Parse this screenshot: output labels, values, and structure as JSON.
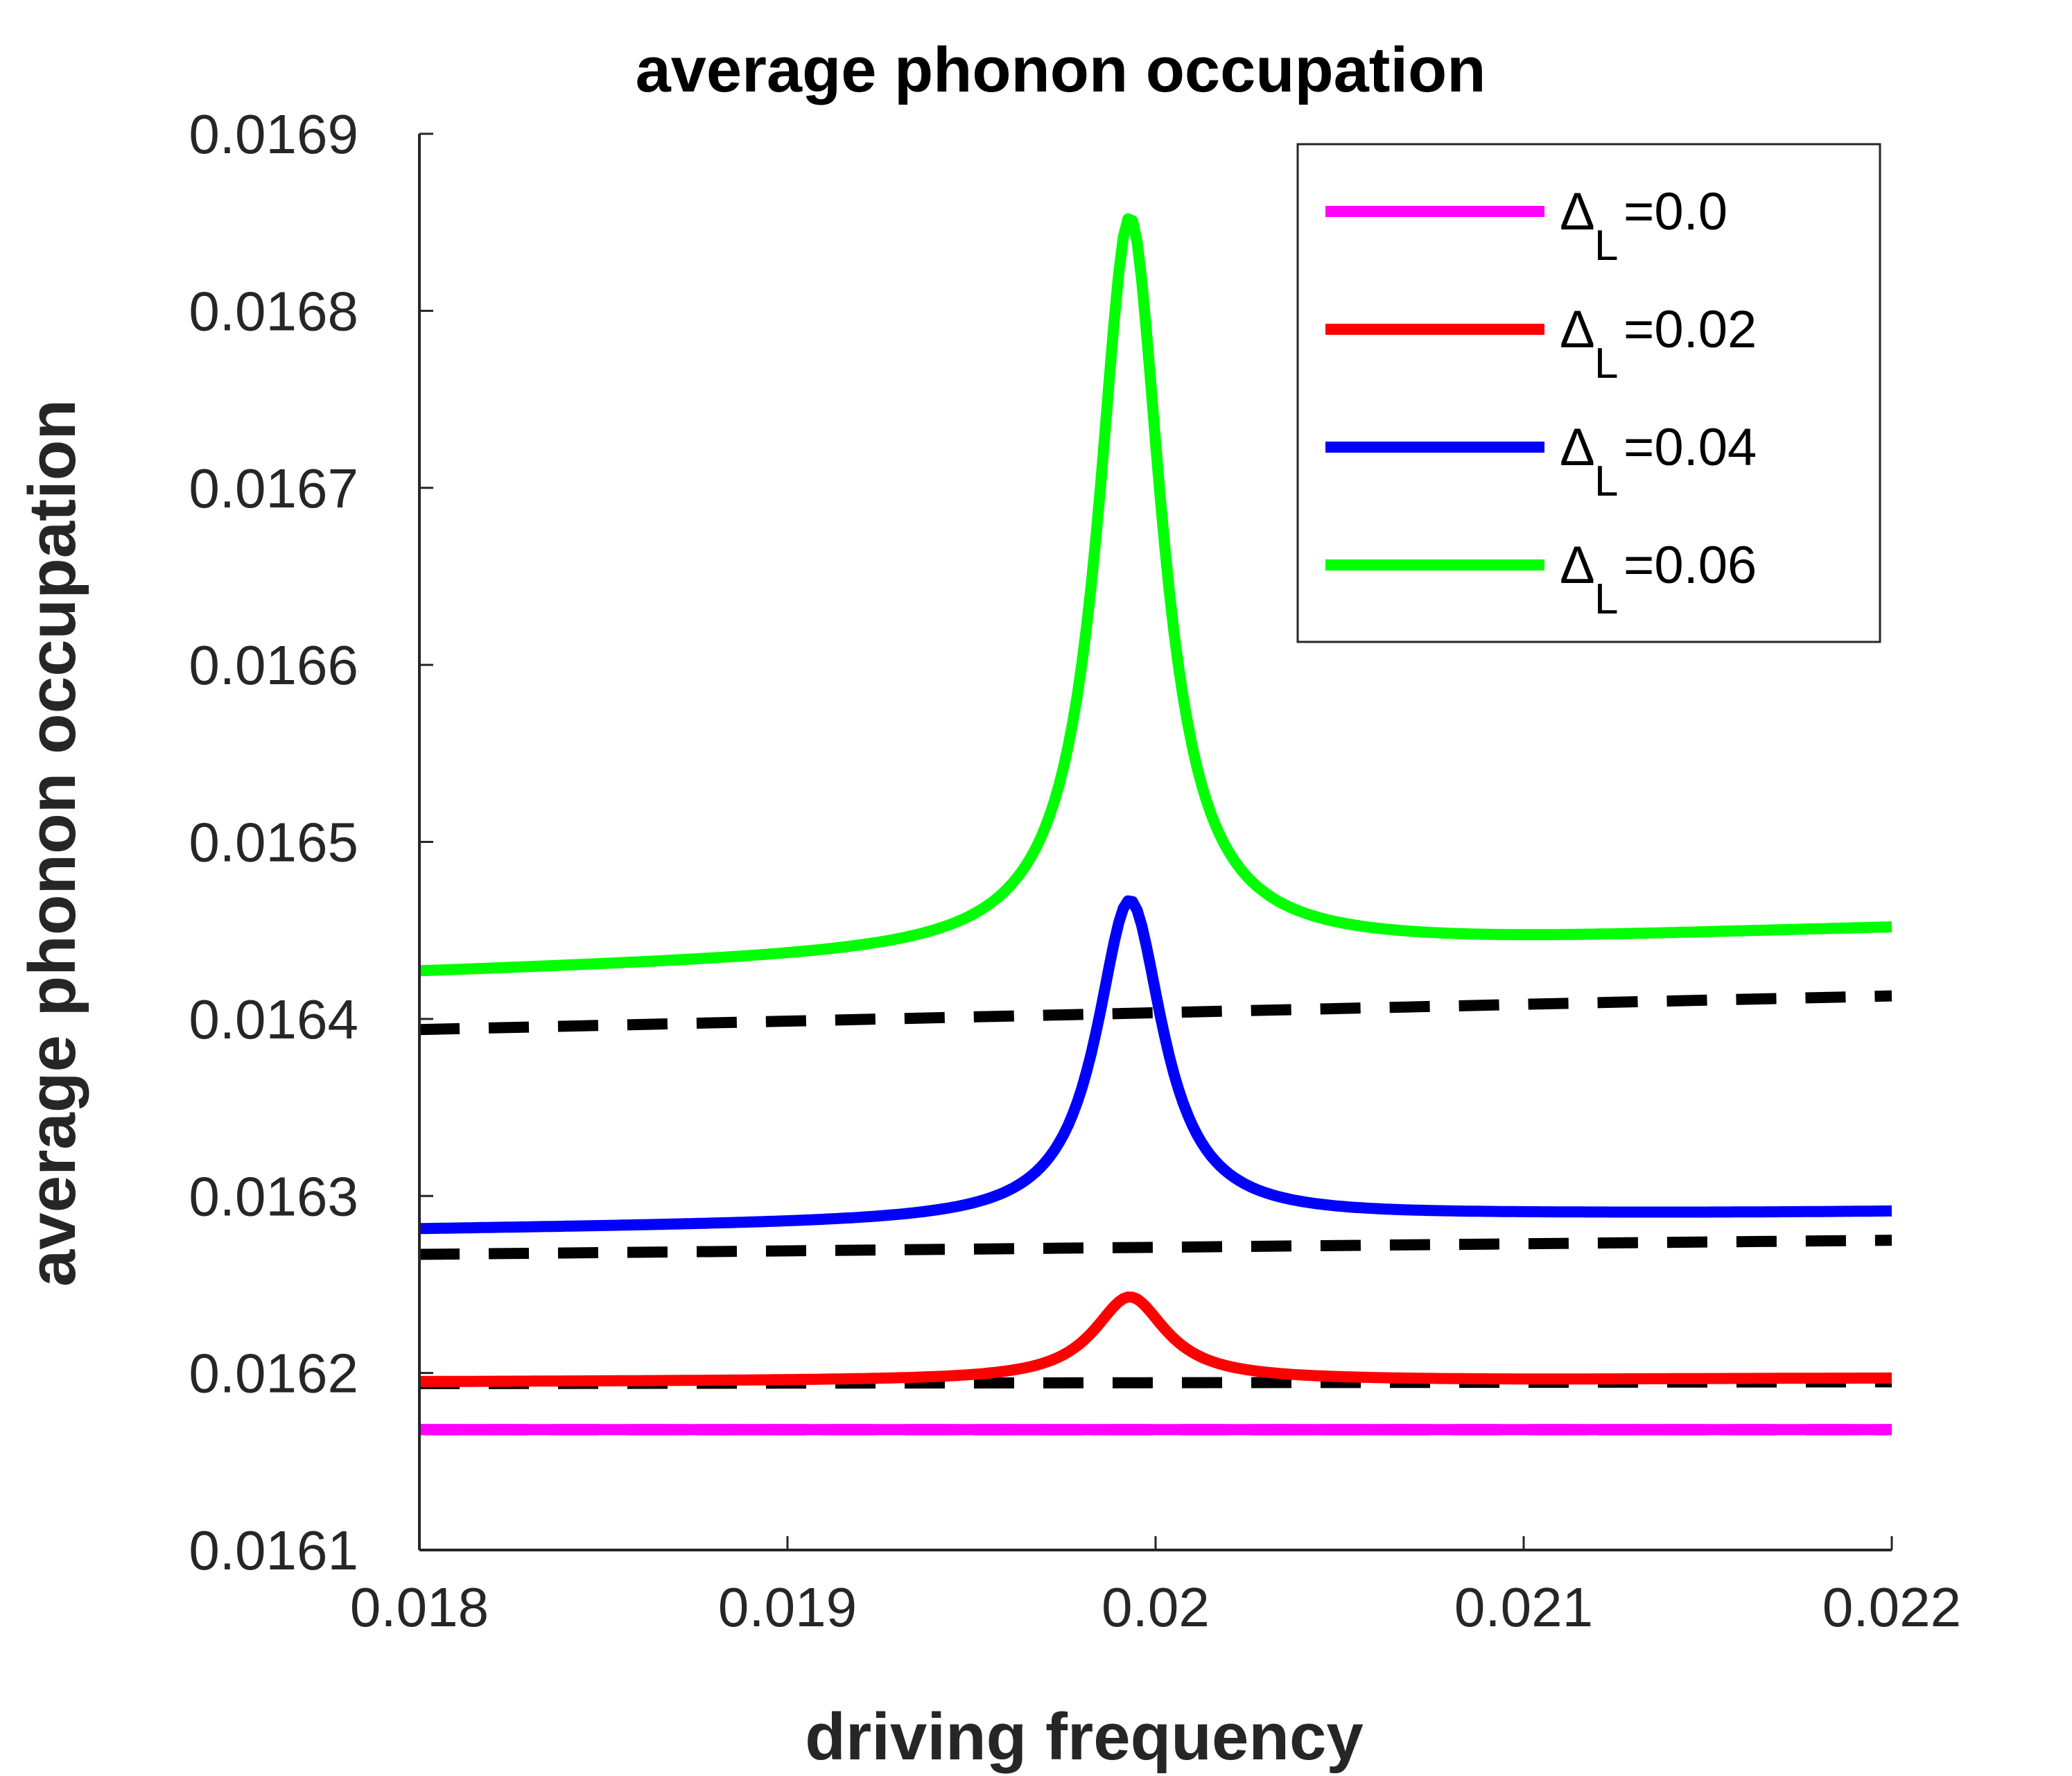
{
  "chart_data": {
    "type": "line",
    "title": "average phonon occupation",
    "xlabel": "driving frequency",
    "ylabel": "average phonon occupation",
    "xlim": [
      0.018,
      0.022
    ],
    "ylim": [
      0.0161,
      0.0169
    ],
    "xticks": [
      0.018,
      0.019,
      0.02,
      0.021,
      0.022
    ],
    "xtick_labels": [
      "0.018",
      "0.019",
      "0.02",
      "0.021",
      "0.022"
    ],
    "yticks": [
      0.0161,
      0.0162,
      0.0163,
      0.0164,
      0.0165,
      0.0166,
      0.0167,
      0.0168,
      0.0169
    ],
    "ytick_labels": [
      "0.0161",
      "0.0162",
      "0.0163",
      "0.0164",
      "0.0165",
      "0.0166",
      "0.0167",
      "0.0168",
      "0.0169"
    ],
    "grid": false,
    "legend_position": "top-right",
    "peak_center": 0.01993,
    "series": [
      {
        "name": "Δ_L=0.0",
        "symbol": "Δ",
        "subscript": "L",
        "value_text": "=0.0",
        "color": "#ff00ff",
        "style": "solid",
        "start": 0.016168,
        "end": 0.016168,
        "baseline_min": 0.016168,
        "peak": 0.016168,
        "width": 0.00012
      },
      {
        "name": "Δ_L=0.02",
        "symbol": "Δ",
        "subscript": "L",
        "value_text": "=0.02",
        "color": "#ff0000",
        "style": "solid",
        "start": 0.016195,
        "end": 0.016197,
        "baseline_min": 0.016196,
        "peak": 0.016243,
        "width": 0.00012
      },
      {
        "name": "Δ_L=0.04",
        "symbol": "Δ",
        "subscript": "L",
        "value_text": "=0.04",
        "color": "#0000ff",
        "style": "solid",
        "start": 0.016281,
        "end": 0.016291,
        "baseline_min": 0.016289,
        "peak": 0.016467,
        "width": 0.00011
      },
      {
        "name": "Δ_L=0.06",
        "symbol": "Δ",
        "subscript": "L",
        "value_text": "=0.06",
        "color": "#00ff00",
        "style": "solid",
        "start": 0.016426,
        "end": 0.016451,
        "baseline_min": 0.016443,
        "peak": 0.016853,
        "width": 0.000105
      }
    ],
    "reference_lines": [
      {
        "color": "#000000",
        "style": "dashed",
        "start": 0.016168,
        "end": 0.016168
      },
      {
        "color": "#000000",
        "style": "dashed",
        "start": 0.016194,
        "end": 0.016195
      },
      {
        "color": "#000000",
        "style": "dashed",
        "start": 0.016267,
        "end": 0.016275
      },
      {
        "color": "#000000",
        "style": "dashed",
        "start": 0.016394,
        "end": 0.016413
      }
    ]
  }
}
